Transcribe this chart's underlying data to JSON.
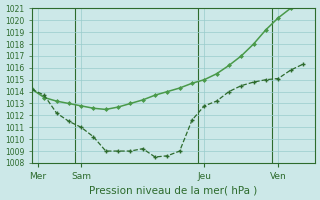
{
  "xlabel": "Pression niveau de la mer( hPa )",
  "ylim": [
    1008,
    1021
  ],
  "xlim": [
    0,
    23
  ],
  "yticks": [
    1008,
    1009,
    1010,
    1011,
    1012,
    1013,
    1014,
    1015,
    1016,
    1017,
    1018,
    1019,
    1020,
    1021
  ],
  "background_color": "#cce8e8",
  "grid_color": "#99cccc",
  "line_color": "#2d6b2d",
  "line2_color": "#4a9a4a",
  "day_labels": [
    "Mer",
    "Sam",
    "Jeu",
    "Ven"
  ],
  "day_positions": [
    0.5,
    4.0,
    14.0,
    20.0
  ],
  "vline_positions": [
    3.5,
    13.5,
    19.5
  ],
  "line1_x": [
    0,
    1,
    2,
    3,
    4,
    5,
    6,
    7,
    8,
    9,
    10,
    11,
    12,
    13,
    14,
    15,
    16,
    17,
    18,
    19,
    20,
    21,
    22
  ],
  "line1_y": [
    1014.2,
    1013.7,
    1012.2,
    1011.5,
    1011.0,
    1010.2,
    1009.0,
    1009.0,
    1009.0,
    1009.2,
    1008.5,
    1008.6,
    1009.0,
    1011.6,
    1012.8,
    1013.2,
    1014.0,
    1014.5,
    1014.8,
    1015.0,
    1015.1,
    1015.8,
    1016.3
  ],
  "line2_x": [
    0,
    1,
    2,
    3,
    4,
    5,
    6,
    7,
    8,
    9,
    10,
    11,
    12,
    13,
    14,
    15,
    16,
    17,
    18,
    19,
    20,
    21,
    22
  ],
  "line2_y": [
    1014.2,
    1013.5,
    1013.2,
    1013.0,
    1012.8,
    1012.6,
    1012.5,
    1012.7,
    1013.0,
    1013.3,
    1013.7,
    1014.0,
    1014.3,
    1014.7,
    1015.0,
    1015.5,
    1016.2,
    1017.0,
    1018.0,
    1019.2,
    1020.2,
    1021.0,
    1021.3
  ],
  "ylabel_fontsize": 5.5,
  "xlabel_fontsize": 7.5,
  "xtick_fontsize": 6.5
}
